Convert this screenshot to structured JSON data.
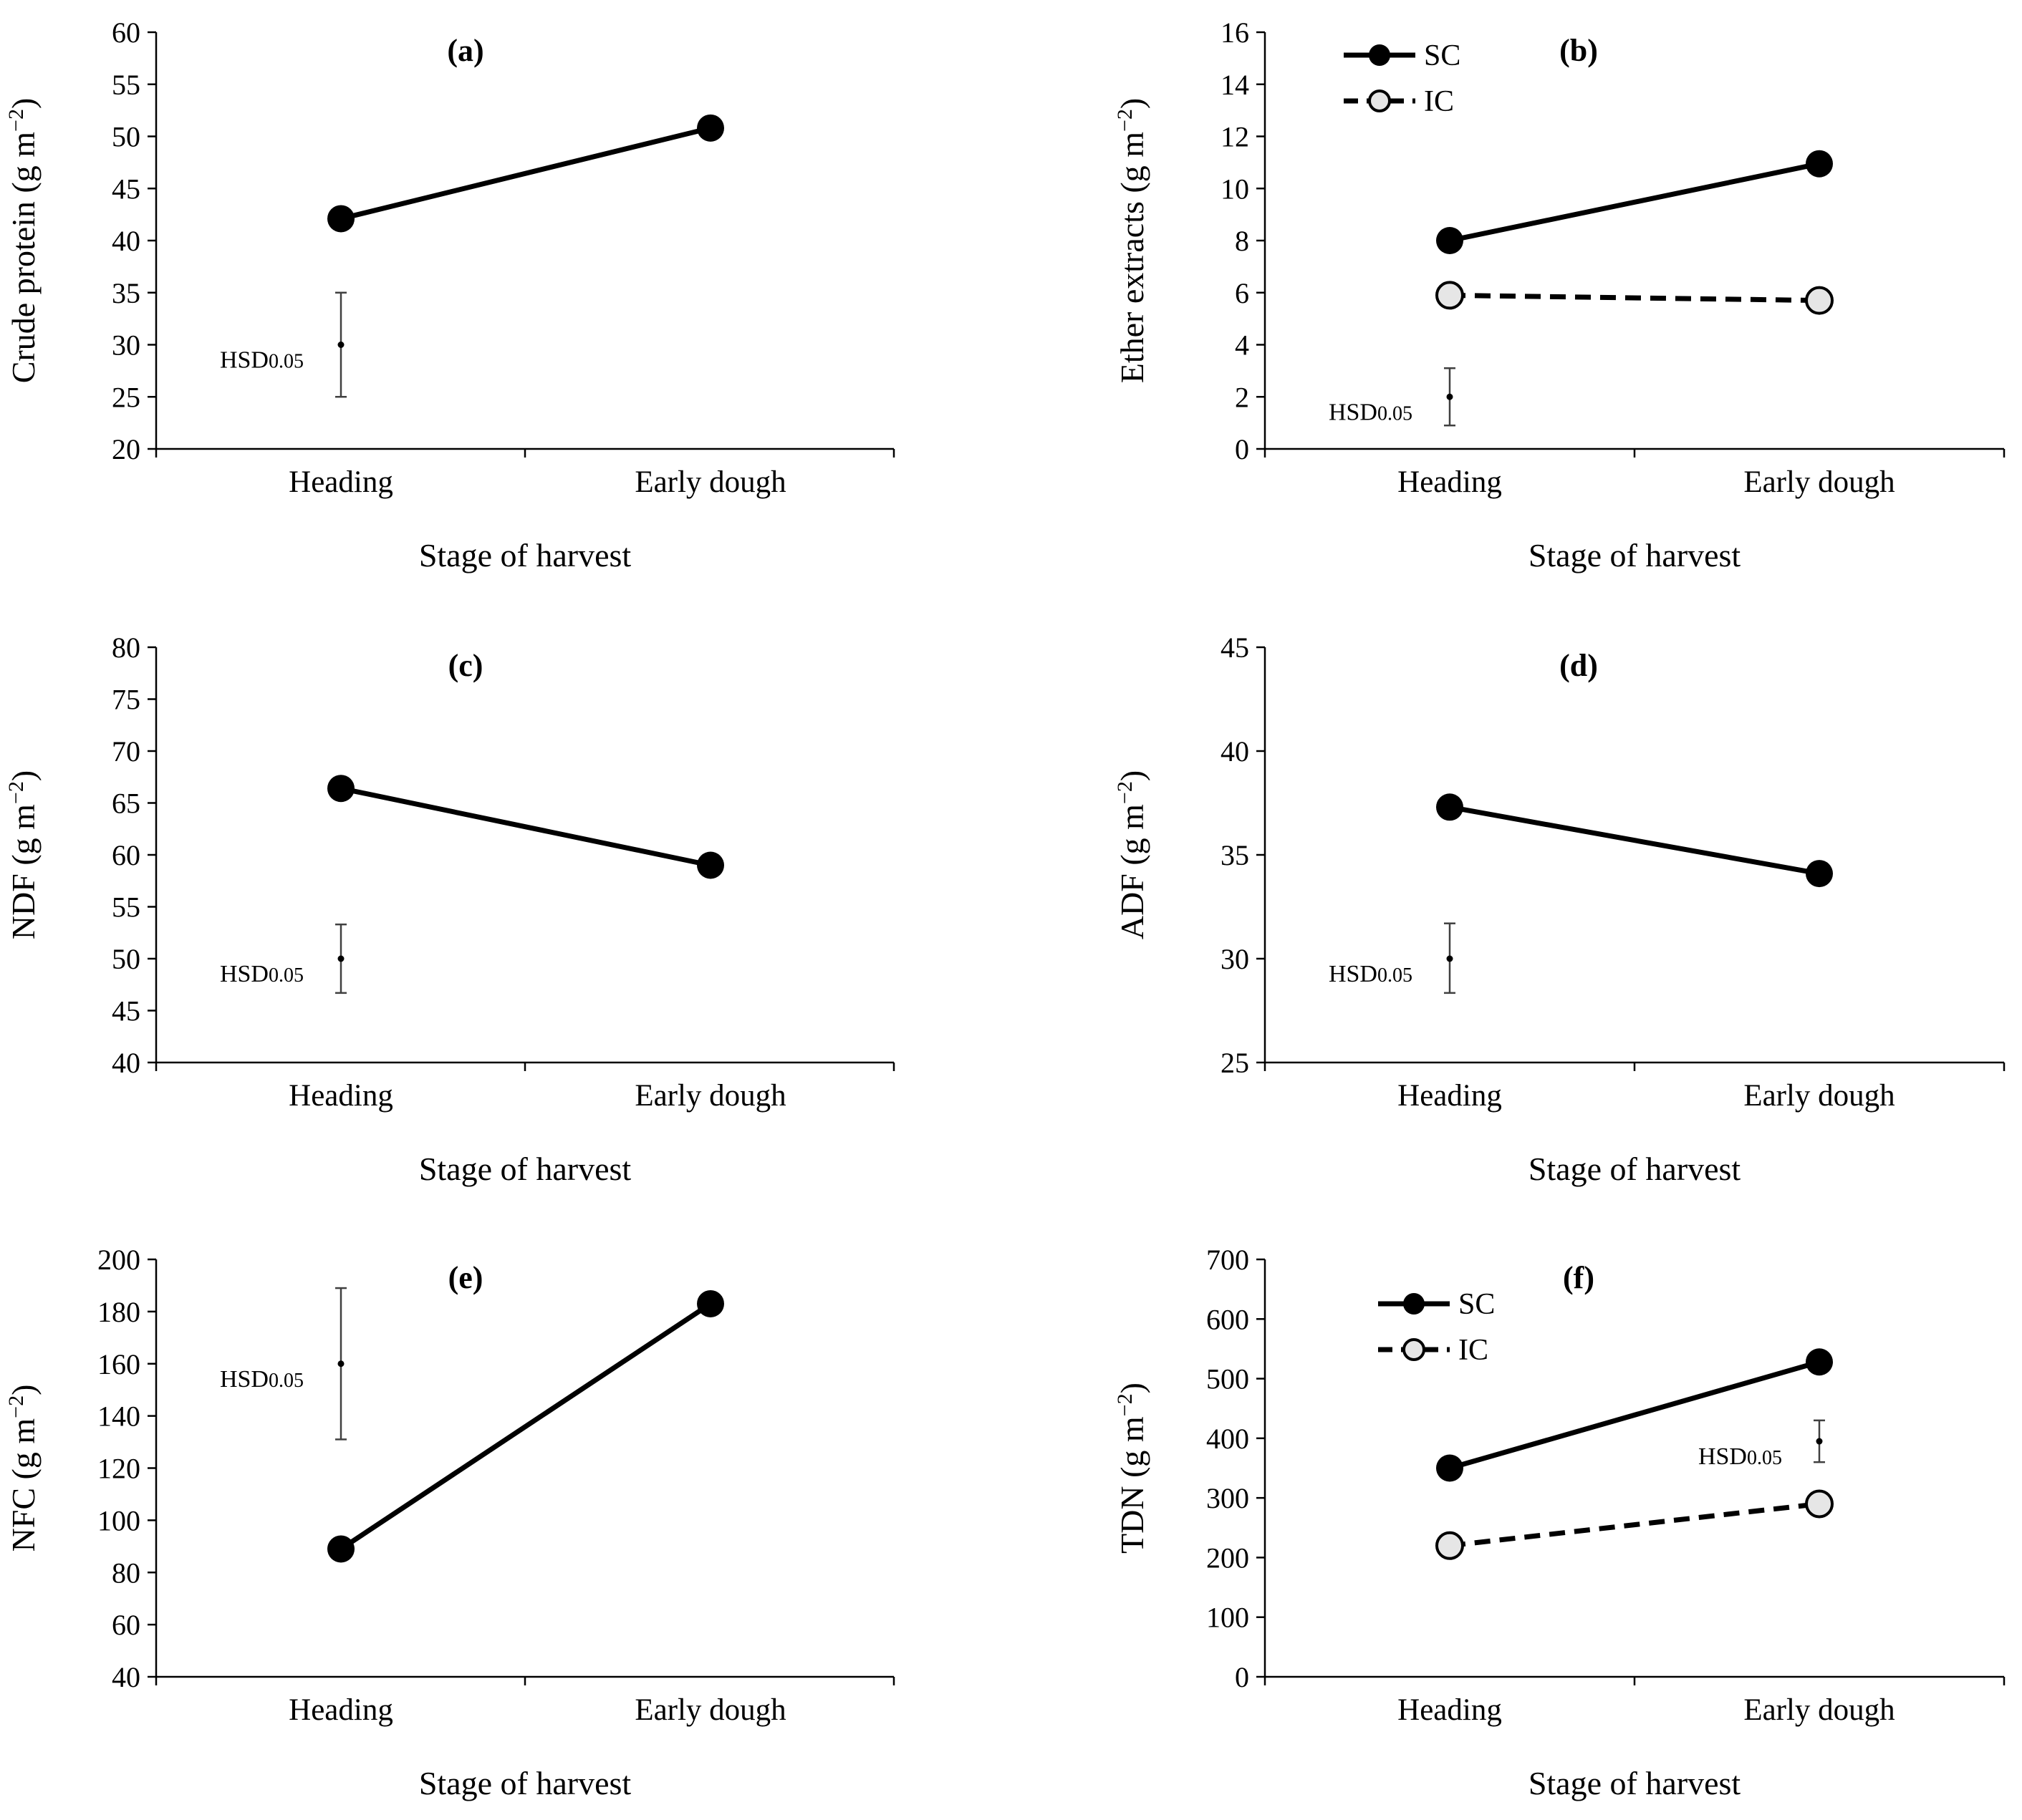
{
  "colors": {
    "line": "#000000",
    "sc_marker": "#000000",
    "ic_marker": "#e6e6e6",
    "axis": "#000000",
    "hsd_bar": "#404040"
  },
  "hsd_label": {
    "main": "HSD",
    "sub": "0.05"
  },
  "chart_data": [
    {
      "id": "a",
      "title": "(a)",
      "type": "line",
      "xlabel": "Stage of harvest",
      "ylabel_main": "Crude  protein",
      "ylabel_unit": "(g m",
      "ylabel_sup": "−2",
      "ylabel_close": ")",
      "categories": [
        "Heading",
        "Early dough"
      ],
      "ylim": [
        20,
        60
      ],
      "yticks": [
        20,
        25,
        30,
        35,
        40,
        45,
        50,
        55,
        60
      ],
      "series": [
        {
          "values": [
            42.1,
            50.8
          ],
          "dashed": false,
          "marker": "filled"
        }
      ],
      "hsd": {
        "category_index": 0,
        "center": 30,
        "low": 25,
        "high": 35,
        "label_side": "left"
      },
      "legend": null
    },
    {
      "id": "b",
      "title": "(b)",
      "type": "line",
      "xlabel": "Stage of harvest",
      "ylabel_main": "Ether  extracts",
      "ylabel_unit": "(g m",
      "ylabel_sup": "−2",
      "ylabel_close": ")",
      "categories": [
        "Heading",
        "Early dough"
      ],
      "ylim": [
        0,
        16
      ],
      "yticks": [
        0,
        2,
        4,
        6,
        8,
        10,
        12,
        14,
        16
      ],
      "series": [
        {
          "name": "SC",
          "values": [
            8.0,
            10.95
          ],
          "dashed": false,
          "marker": "filled"
        },
        {
          "name": "IC",
          "values": [
            5.9,
            5.7
          ],
          "dashed": true,
          "marker": "open"
        }
      ],
      "hsd": {
        "category_index": 0,
        "center": 2.0,
        "low": 0.9,
        "high": 3.1,
        "label_side": "left"
      },
      "legend": {
        "position": "top-left"
      }
    },
    {
      "id": "c",
      "title": "(c)",
      "type": "line",
      "xlabel": "Stage of harvest",
      "ylabel_main": "NDF",
      "ylabel_unit": "(g m",
      "ylabel_sup": "−2",
      "ylabel_close": ")",
      "categories": [
        "Heading",
        "Early dough"
      ],
      "ylim": [
        40,
        80
      ],
      "yticks": [
        40,
        45,
        50,
        55,
        60,
        65,
        70,
        75,
        80
      ],
      "series": [
        {
          "values": [
            66.4,
            59.0
          ],
          "dashed": false,
          "marker": "filled"
        }
      ],
      "hsd": {
        "category_index": 0,
        "center": 50,
        "low": 46.7,
        "high": 53.3,
        "label_side": "left"
      },
      "legend": null
    },
    {
      "id": "d",
      "title": "(d)",
      "type": "line",
      "xlabel": "Stage of harvest",
      "ylabel_main": "ADF",
      "ylabel_unit": "(g m",
      "ylabel_sup": "−2",
      "ylabel_close": ")",
      "categories": [
        "Heading",
        "Early dough"
      ],
      "ylim": [
        25,
        45
      ],
      "yticks": [
        25,
        30,
        35,
        40,
        45
      ],
      "series": [
        {
          "values": [
            37.3,
            34.1
          ],
          "dashed": false,
          "marker": "filled"
        }
      ],
      "hsd": {
        "category_index": 0,
        "center": 30,
        "low": 28.35,
        "high": 31.7,
        "label_side": "left"
      },
      "legend": null
    },
    {
      "id": "e",
      "title": "(e)",
      "type": "line",
      "xlabel": "Stage of harvest",
      "ylabel_main": "NFC",
      "ylabel_unit": "(g m",
      "ylabel_sup": "−2",
      "ylabel_close": ")",
      "categories": [
        "Heading",
        "Early dough"
      ],
      "ylim": [
        40,
        200
      ],
      "yticks": [
        40,
        60,
        80,
        100,
        120,
        140,
        160,
        180,
        200
      ],
      "series": [
        {
          "values": [
            89,
            183
          ],
          "dashed": false,
          "marker": "filled"
        }
      ],
      "hsd": {
        "category_index": 0,
        "center": 160,
        "low": 131,
        "high": 189,
        "label_side": "left"
      },
      "legend": null
    },
    {
      "id": "f",
      "title": "(f)",
      "type": "line",
      "xlabel": "Stage of harvest",
      "ylabel_main": "TDN",
      "ylabel_unit": "(g m",
      "ylabel_sup": "−2",
      "ylabel_close": ")",
      "categories": [
        "Heading",
        "Early dough"
      ],
      "ylim": [
        0,
        700
      ],
      "yticks": [
        0,
        100,
        200,
        300,
        400,
        500,
        600,
        700
      ],
      "series": [
        {
          "name": "SC",
          "values": [
            350,
            528
          ],
          "dashed": false,
          "marker": "filled"
        },
        {
          "name": "IC",
          "values": [
            220,
            290
          ],
          "dashed": true,
          "marker": "open"
        }
      ],
      "hsd": {
        "category_index": 1,
        "center": 395,
        "low": 360,
        "high": 430,
        "label_side": "left"
      },
      "legend": {
        "position": "top-left"
      }
    }
  ]
}
